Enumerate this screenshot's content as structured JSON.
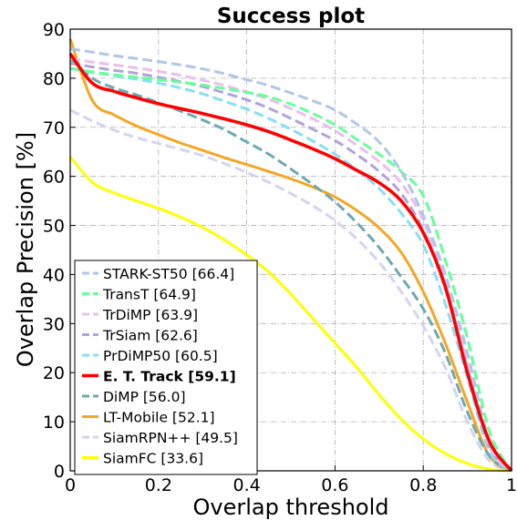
{
  "chart_data": {
    "type": "line",
    "title": "Success plot",
    "xlabel": "Overlap threshold",
    "ylabel": "Overlap Precision [%]",
    "xlim": [
      0,
      1
    ],
    "ylim": [
      0,
      90
    ],
    "xticks": [
      0,
      0.2,
      0.4,
      0.6,
      0.8,
      1
    ],
    "xtick_labels": [
      "0",
      "0.2",
      "0.4",
      "0.6",
      "0.8",
      "1"
    ],
    "yticks": [
      0,
      10,
      20,
      30,
      40,
      50,
      60,
      70,
      80,
      90
    ],
    "ytick_labels": [
      "0",
      "10",
      "20",
      "30",
      "40",
      "50",
      "60",
      "70",
      "80",
      "90"
    ],
    "grid": true,
    "legend_position": "bottom-left",
    "x": [
      0,
      0.05,
      0.1,
      0.15,
      0.2,
      0.25,
      0.3,
      0.35,
      0.4,
      0.45,
      0.5,
      0.55,
      0.6,
      0.65,
      0.7,
      0.75,
      0.8,
      0.85,
      0.9,
      0.95,
      1.0
    ],
    "series": [
      {
        "name": "STARK-ST50 [66.4]",
        "color": "#aec7e8",
        "dashed": true,
        "bold": false,
        "values": [
          86.0,
          85.3,
          84.6,
          84.0,
          83.4,
          82.7,
          81.9,
          80.9,
          79.7,
          78.5,
          77.0,
          75.4,
          73.5,
          70.6,
          67.0,
          61.0,
          52.0,
          40.0,
          24.0,
          6.0,
          0.0
        ]
      },
      {
        "name": "TransT [64.9]",
        "color": "#66ff99",
        "dashed": true,
        "bold": false,
        "values": [
          82.0,
          81.3,
          80.7,
          80.2,
          79.7,
          79.2,
          78.6,
          77.9,
          77.1,
          76.2,
          74.7,
          72.8,
          70.5,
          67.5,
          64.5,
          61.0,
          56.0,
          43.0,
          27.0,
          8.0,
          0.0
        ]
      },
      {
        "name": "TrDiMP [63.9]",
        "color": "#eabfea",
        "dashed": true,
        "bold": false,
        "values": [
          84.0,
          83.3,
          82.7,
          82.1,
          81.4,
          80.6,
          79.6,
          78.5,
          77.2,
          75.7,
          73.8,
          71.7,
          69.3,
          66.3,
          63.0,
          58.6,
          51.0,
          38.0,
          22.0,
          5.0,
          0.0
        ]
      },
      {
        "name": "TrSiam [62.6]",
        "color": "#b2a3dc",
        "dashed": true,
        "bold": false,
        "values": [
          83.0,
          82.3,
          81.6,
          81.0,
          80.2,
          79.3,
          78.3,
          77.0,
          75.6,
          73.9,
          71.8,
          69.6,
          67.3,
          64.4,
          61.0,
          56.5,
          49.0,
          37.0,
          21.0,
          5.0,
          0.0
        ]
      },
      {
        "name": "PrDiMP50 [60.5]",
        "color": "#86dff7",
        "dashed": true,
        "bold": false,
        "values": [
          82.0,
          81.2,
          80.5,
          79.8,
          79.0,
          78.0,
          76.8,
          75.3,
          73.7,
          71.8,
          69.6,
          67.2,
          64.5,
          61.3,
          57.5,
          52.5,
          46.0,
          34.0,
          19.0,
          4.0,
          0.0
        ]
      },
      {
        "name": "E. T. Track [59.1]",
        "color": "#ff0000",
        "dashed": false,
        "bold": true,
        "values": [
          85.0,
          79.0,
          77.3,
          76.0,
          74.8,
          73.8,
          72.8,
          71.7,
          70.5,
          69.1,
          67.4,
          65.6,
          63.6,
          61.2,
          58.7,
          55.0,
          48.5,
          37.5,
          20.0,
          6.0,
          0.0
        ]
      },
      {
        "name": "DiMP [56.0]",
        "color": "#6fa8b0",
        "dashed": true,
        "bold": false,
        "values": [
          84.0,
          80.0,
          78.0,
          76.6,
          75.0,
          73.3,
          71.5,
          69.5,
          67.0,
          64.5,
          61.5,
          58.3,
          54.8,
          50.5,
          45.5,
          39.5,
          33.0,
          24.0,
          12.0,
          3.0,
          0.0
        ]
      },
      {
        "name": "LT-Mobile [52.1]",
        "color": "#f5a623",
        "dashed": false,
        "bold": false,
        "values": [
          88.0,
          75.5,
          72.5,
          70.3,
          68.5,
          66.8,
          65.3,
          63.8,
          62.4,
          61.0,
          59.5,
          57.8,
          55.8,
          53.0,
          49.5,
          44.5,
          36.5,
          26.0,
          14.0,
          3.0,
          0.0
        ]
      },
      {
        "name": "SiamRPN++ [49.5]",
        "color": "#d4d4ee",
        "dashed": true,
        "bold": false,
        "values": [
          73.5,
          71.3,
          69.4,
          67.9,
          66.7,
          65.5,
          64.2,
          62.6,
          60.8,
          58.8,
          56.5,
          54.0,
          51.0,
          47.2,
          42.5,
          36.5,
          29.5,
          21.0,
          10.0,
          2.0,
          0.0
        ]
      },
      {
        "name": "SiamFC [33.6]",
        "color": "#ffff00",
        "dashed": false,
        "bold": false,
        "values": [
          64.0,
          58.8,
          56.6,
          55.0,
          53.5,
          51.7,
          49.6,
          47.0,
          44.0,
          40.5,
          36.0,
          31.0,
          26.0,
          21.0,
          15.5,
          10.5,
          6.5,
          3.5,
          1.5,
          0.3,
          0.0
        ]
      }
    ]
  }
}
